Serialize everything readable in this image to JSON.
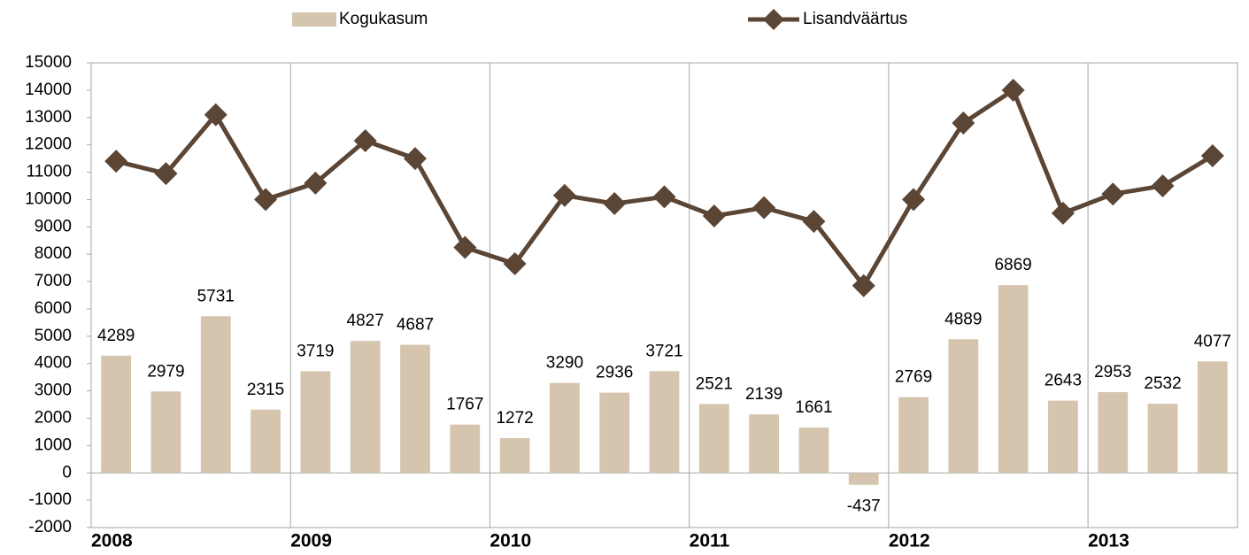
{
  "chart_data": {
    "type": "bar-line",
    "categories": [
      "2008",
      null,
      null,
      null,
      "2009",
      null,
      null,
      null,
      "2010",
      null,
      null,
      null,
      "2011",
      null,
      null,
      null,
      "2012",
      null,
      null,
      null,
      "2013",
      null,
      null
    ],
    "series": [
      {
        "name": "Kogukasum",
        "type": "bar",
        "color": "#d5c5ae",
        "values": [
          4289,
          2979,
          5731,
          2315,
          3719,
          4827,
          4687,
          1767,
          1272,
          3290,
          2936,
          3721,
          2521,
          2139,
          1661,
          -437,
          2769,
          4889,
          6869,
          2643,
          2953,
          2532,
          4077
        ]
      },
      {
        "name": "Lisandväärtus",
        "type": "line",
        "color": "#5b4535",
        "values": [
          11400,
          10950,
          13100,
          10000,
          10600,
          12150,
          11500,
          8250,
          7650,
          10150,
          9850,
          10100,
          9400,
          9700,
          9200,
          6850,
          10000,
          12800,
          14000,
          9500,
          10200,
          10500,
          11600
        ]
      }
    ],
    "ylim": [
      -2000,
      15000
    ],
    "yticks": [
      -2000,
      -1000,
      0,
      1000,
      2000,
      3000,
      4000,
      5000,
      6000,
      7000,
      8000,
      9000,
      10000,
      11000,
      12000,
      13000,
      14000,
      15000
    ]
  }
}
